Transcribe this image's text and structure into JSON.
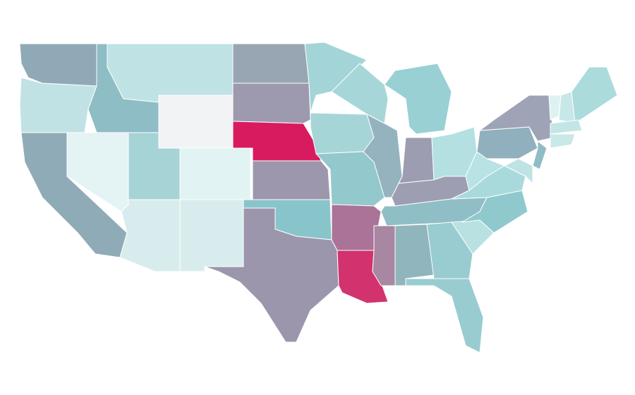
{
  "map": {
    "region_colors": [
      "#90a9b6",
      "#c1e2e4",
      "#90abb8",
      "#8fbdc5",
      "#e4f3f4",
      "#bfe2e4",
      "#f2f3f5",
      "#a6d3d6",
      "#e2f3f3",
      "#d8eced",
      "#d8eced",
      "#98a6b3",
      "#9d9aaf",
      "#d81b5f",
      "#9d97ad",
      "#88c5cb",
      "#9c96ac",
      "#a3d5d8",
      "#a6d5d8",
      "#93c8cc",
      "#ab7397",
      "#d2326e",
      "#a6d6d8",
      "#94b3bf",
      "#98d0d4",
      "#9c9db0",
      "#b4e0e1",
      "#9d9eb2",
      "#90bec6",
      "#a887a2",
      "#90b5bd",
      "#98ccd0",
      "#98ccd0",
      "#b9e1e2",
      "#8fc9cd",
      "#a9dadb",
      "#b8e2e3",
      "#8fb0bc",
      "#9fa3b6",
      "#8fbdc5",
      "#bfe3e4",
      "#dff2f2",
      "#c8e7e7",
      "#acdbdc",
      "#c4e5e6",
      "#c9e8e8"
    ]
  }
}
